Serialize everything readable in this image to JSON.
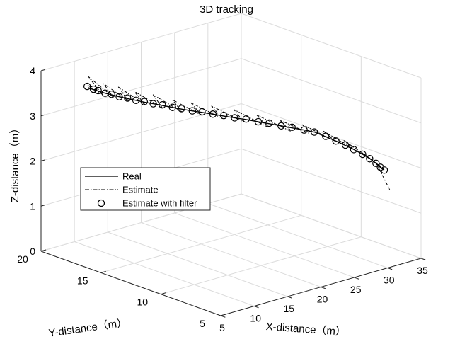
{
  "chart_data": {
    "type": "line",
    "title": "3D tracking",
    "xlabel": "X-distance（m）",
    "ylabel": "Y-distance（m）",
    "zlabel": "Z-distance（m）",
    "xlim": [
      5,
      35
    ],
    "ylim": [
      5,
      20
    ],
    "zlim": [
      0,
      4
    ],
    "xticks": [
      5,
      10,
      15,
      20,
      25,
      30,
      35
    ],
    "yticks": [
      5,
      10,
      15,
      20
    ],
    "zticks": [
      0,
      1,
      2,
      3,
      4
    ],
    "grid": true,
    "legend_position": "left-center",
    "series": [
      {
        "name": "Real",
        "style": "solid",
        "color": "#000000",
        "x": [
          5.0,
          5.5,
          6.1,
          6.7,
          7.4,
          8.1,
          8.9,
          9.7,
          10.5,
          11.4,
          12.3,
          13.2,
          14.1,
          15.1,
          16.1,
          17.1,
          18.1,
          19.1,
          20.2,
          21.2,
          22.2,
          23.2,
          24.2,
          25.2,
          26.1,
          27.0,
          27.9,
          28.7,
          29.5,
          30.2,
          30.8,
          31.3,
          31.7,
          32.0
        ],
        "y": [
          16.1,
          15.9,
          15.8,
          15.6,
          15.4,
          15.2,
          14.9,
          14.7,
          14.4,
          14.2,
          13.9,
          13.6,
          13.3,
          13.0,
          12.7,
          12.4,
          12.0,
          11.7,
          11.3,
          10.9,
          10.5,
          10.1,
          9.7,
          9.3,
          8.9,
          8.5,
          8.1,
          7.8,
          7.5,
          7.2,
          6.9,
          6.7,
          6.5,
          6.4
        ],
        "z": [
          4.0,
          3.95,
          3.9,
          3.85,
          3.8,
          3.75,
          3.7,
          3.65,
          3.6,
          3.55,
          3.5,
          3.45,
          3.4,
          3.35,
          3.3,
          3.25,
          3.2,
          3.15,
          3.1,
          3.05,
          3.0,
          2.95,
          2.9,
          2.85,
          2.8,
          2.7,
          2.6,
          2.5,
          2.4,
          2.3,
          2.2,
          2.1,
          2.0,
          1.95
        ]
      },
      {
        "name": "Estimate",
        "style": "dashdot",
        "color": "#000000",
        "x": [
          5.0,
          5.7,
          6.0,
          7.0,
          7.2,
          8.4,
          8.7,
          10.0,
          10.3,
          11.7,
          12.1,
          13.5,
          13.9,
          15.4,
          15.8,
          17.4,
          17.8,
          19.4,
          19.9,
          21.5,
          21.9,
          23.5,
          23.9,
          25.5,
          25.8,
          27.3,
          27.6,
          29.0,
          29.2,
          30.4,
          30.5,
          31.4,
          31.6,
          32.1
        ],
        "y": [
          16.1,
          15.3,
          16.6,
          15.1,
          16.0,
          14.6,
          15.6,
          14.1,
          15.2,
          13.6,
          14.6,
          13.0,
          14.0,
          12.4,
          13.5,
          11.8,
          12.9,
          11.1,
          12.2,
          10.3,
          11.4,
          9.5,
          10.6,
          8.7,
          9.8,
          7.9,
          9.0,
          7.2,
          8.2,
          6.7,
          7.4,
          6.3,
          6.9,
          6.0
        ],
        "z": [
          4.05,
          3.9,
          4.15,
          3.8,
          4.0,
          3.7,
          3.9,
          3.6,
          3.78,
          3.5,
          3.68,
          3.4,
          3.55,
          3.3,
          3.45,
          3.2,
          3.35,
          3.1,
          3.25,
          2.98,
          3.12,
          2.88,
          3.0,
          2.78,
          2.9,
          2.65,
          2.75,
          2.45,
          2.55,
          2.25,
          2.3,
          2.05,
          2.1,
          1.55
        ]
      },
      {
        "name": "Estimate with filter",
        "style": "circle",
        "color": "#000000",
        "x": [
          5.0,
          5.5,
          6.1,
          6.7,
          7.4,
          8.1,
          8.9,
          9.7,
          10.5,
          11.4,
          12.3,
          13.2,
          14.1,
          15.1,
          16.1,
          17.1,
          18.1,
          19.1,
          20.2,
          21.2,
          22.2,
          23.2,
          24.2,
          25.2,
          26.1,
          27.0,
          27.9,
          28.7,
          29.5,
          30.2,
          30.8,
          31.3,
          31.7,
          32.0
        ],
        "y": [
          16.15,
          15.9,
          15.85,
          15.6,
          15.45,
          15.2,
          14.95,
          14.7,
          14.45,
          14.2,
          13.95,
          13.6,
          13.35,
          13.0,
          12.75,
          12.4,
          12.05,
          11.7,
          11.35,
          10.9,
          10.55,
          10.1,
          9.75,
          9.3,
          8.95,
          8.5,
          8.15,
          7.8,
          7.55,
          7.2,
          6.95,
          6.7,
          6.55,
          6.4
        ],
        "z": [
          4.02,
          3.96,
          3.91,
          3.85,
          3.81,
          3.75,
          3.71,
          3.65,
          3.61,
          3.55,
          3.51,
          3.45,
          3.41,
          3.35,
          3.31,
          3.25,
          3.21,
          3.15,
          3.11,
          3.05,
          3.01,
          2.95,
          2.91,
          2.85,
          2.8,
          2.71,
          2.6,
          2.51,
          2.4,
          2.3,
          2.2,
          2.1,
          2.01,
          1.95
        ]
      }
    ]
  }
}
